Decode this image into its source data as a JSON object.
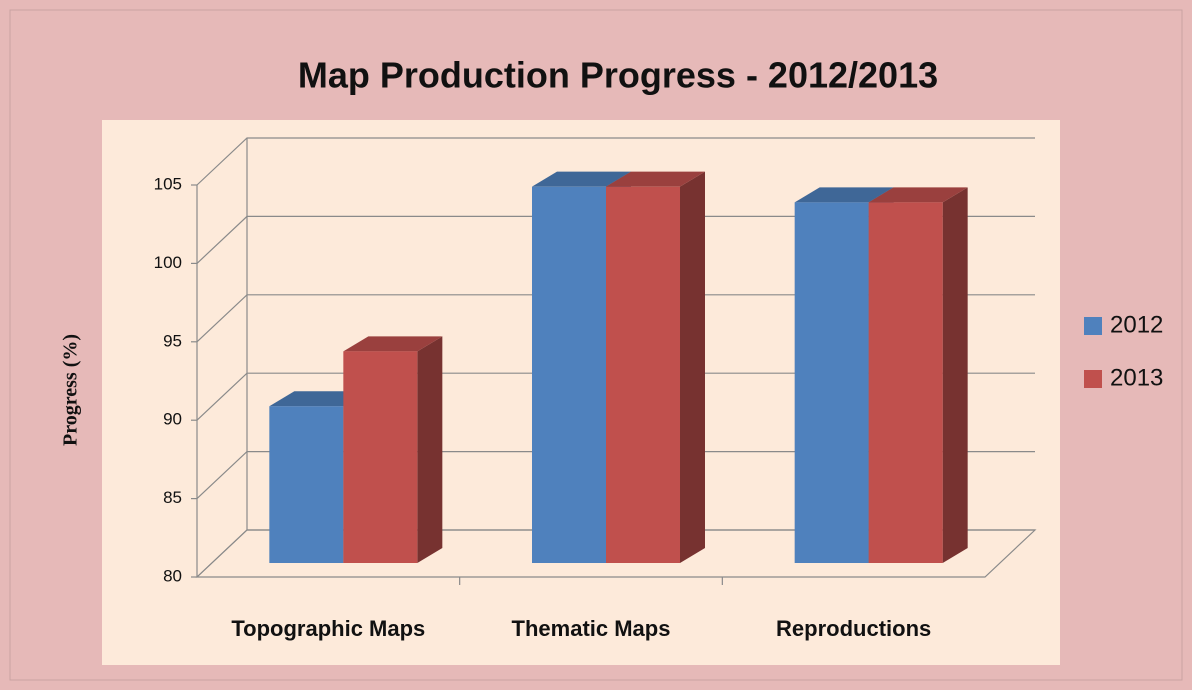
{
  "chart_data": {
    "type": "bar3d",
    "title": "Map Production Progress - 2012/2013",
    "y_axis_label": "Progress (%)",
    "categories": [
      "Topographic  Maps",
      "Thematic Maps",
      "Reproductions"
    ],
    "series": [
      {
        "name": "2012",
        "color": "#4f81bd",
        "values": [
          90,
          104,
          103
        ]
      },
      {
        "name": "2013",
        "color": "#c0504d",
        "values": [
          93.5,
          104,
          103
        ]
      }
    ],
    "ylim": [
      80,
      105
    ],
    "yticks": [
      80,
      85,
      90,
      95,
      100,
      105
    ],
    "grid": true,
    "legend": "right"
  }
}
